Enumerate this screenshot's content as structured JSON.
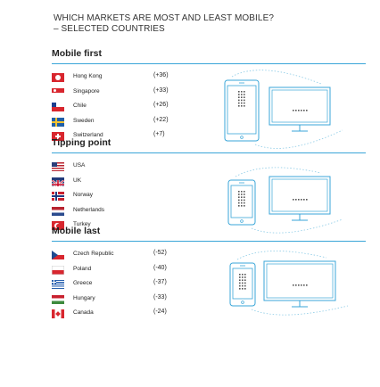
{
  "title": {
    "line1": "WHICH MARKETS ARE MOST AND LEAST MOBILE?",
    "line2": "– SELECTED COUNTRIES"
  },
  "colors": {
    "accent": "#3aa6d8",
    "text": "#222222"
  },
  "chart_data": {
    "type": "table",
    "title": "WHICH MARKETS ARE MOST AND LEAST MOBILE? – SELECTED COUNTRIES",
    "groups": [
      {
        "name": "Mobile first",
        "icon": "phone-larger-than-desktop-icon",
        "rows": [
          {
            "country": "Hong Kong",
            "value": "(+36)",
            "flag": "hong-kong-flag-icon"
          },
          {
            "country": "Singapore",
            "value": "(+33)",
            "flag": "singapore-flag-icon"
          },
          {
            "country": "Chile",
            "value": "(+26)",
            "flag": "chile-flag-icon"
          },
          {
            "country": "Sweden",
            "value": "(+22)",
            "flag": "sweden-flag-icon"
          },
          {
            "country": "Switzerland",
            "value": "(+7)",
            "flag": "switzerland-flag-icon"
          }
        ]
      },
      {
        "name": "Tipping point",
        "icon": "phone-equal-desktop-icon",
        "rows": [
          {
            "country": "USA",
            "value": "",
            "flag": "usa-flag-icon"
          },
          {
            "country": "UK",
            "value": "",
            "flag": "uk-flag-icon"
          },
          {
            "country": "Norway",
            "value": "",
            "flag": "norway-flag-icon"
          },
          {
            "country": "Netherlands",
            "value": "",
            "flag": "netherlands-flag-icon"
          },
          {
            "country": "Turkey",
            "value": "",
            "flag": "turkey-flag-icon"
          }
        ]
      },
      {
        "name": "Mobile last",
        "icon": "desktop-larger-than-phone-icon",
        "rows": [
          {
            "country": "Czech Republic",
            "value": "(-52)",
            "flag": "czech-flag-icon"
          },
          {
            "country": "Poland",
            "value": "(-40)",
            "flag": "poland-flag-icon"
          },
          {
            "country": "Greece",
            "value": "(-37)",
            "flag": "greece-flag-icon"
          },
          {
            "country": "Hungary",
            "value": "(-33)",
            "flag": "hungary-flag-icon"
          },
          {
            "country": "Canada",
            "value": "(-24)",
            "flag": "canada-flag-icon"
          }
        ]
      }
    ]
  }
}
